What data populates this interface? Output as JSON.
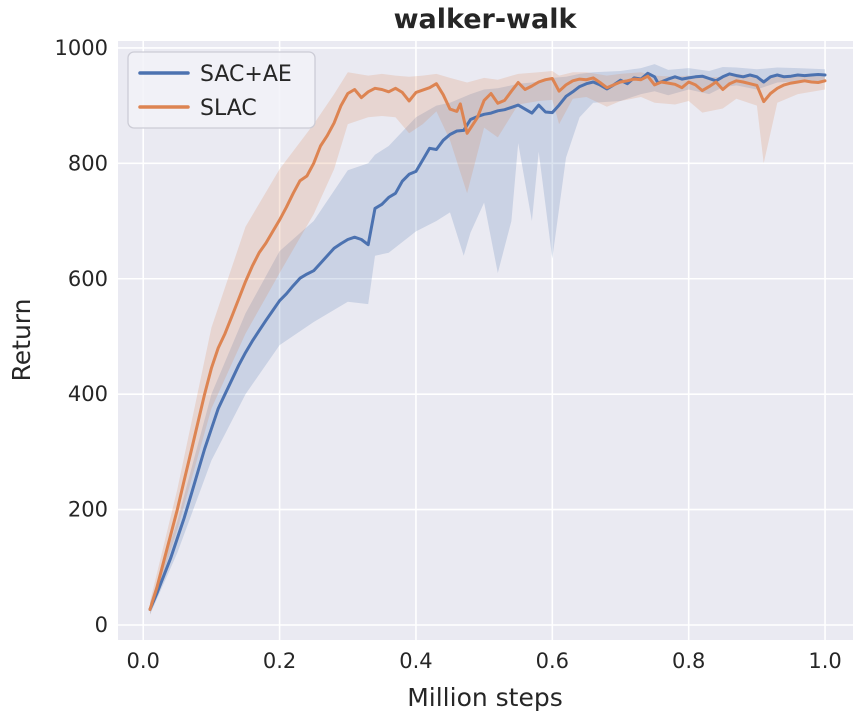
{
  "figure": {
    "title": "walker-walk",
    "xlabel": "Million steps",
    "ylabel": "Return"
  },
  "legend": {
    "items": [
      {
        "label": "SAC+AE",
        "color": "#4C72B0"
      },
      {
        "label": "SLAC",
        "color": "#DD8452"
      }
    ]
  },
  "colors": {
    "figure_bg": "#FFFFFF",
    "plot_bg": "#EAEAF2",
    "grid": "#FFFFFF",
    "text": "#262626",
    "legend_face": "#F2F2F8",
    "legend_edge": "#CCCCD6"
  },
  "chart_data": {
    "type": "line",
    "title": "walker-walk",
    "xlabel": "Million steps",
    "ylabel": "Return",
    "grid": true,
    "legend_position": "upper left",
    "xlim": [
      -0.037,
      1.041
    ],
    "ylim": [
      -26,
      1012
    ],
    "xticks": [
      0.0,
      0.2,
      0.4,
      0.6,
      0.8,
      1.0
    ],
    "xtick_labels": [
      "0.0",
      "0.2",
      "0.4",
      "0.6",
      "0.8",
      "1.0"
    ],
    "yticks": [
      0,
      200,
      400,
      600,
      800,
      1000
    ],
    "ytick_labels": [
      "0",
      "200",
      "400",
      "600",
      "800",
      "1000"
    ],
    "band_alpha": 0.2,
    "series": [
      {
        "name": "SAC+AE",
        "color": "#4C72B0",
        "x": [
          0.01,
          0.02,
          0.03,
          0.04,
          0.05,
          0.06,
          0.07,
          0.08,
          0.09,
          0.1,
          0.11,
          0.12,
          0.13,
          0.14,
          0.15,
          0.16,
          0.17,
          0.18,
          0.19,
          0.2,
          0.21,
          0.22,
          0.23,
          0.24,
          0.25,
          0.26,
          0.27,
          0.28,
          0.29,
          0.3,
          0.31,
          0.32,
          0.33,
          0.34,
          0.35,
          0.36,
          0.37,
          0.38,
          0.39,
          0.4,
          0.41,
          0.42,
          0.43,
          0.44,
          0.45,
          0.46,
          0.47,
          0.48,
          0.49,
          0.5,
          0.51,
          0.52,
          0.53,
          0.54,
          0.55,
          0.56,
          0.57,
          0.58,
          0.59,
          0.6,
          0.61,
          0.62,
          0.63,
          0.64,
          0.65,
          0.66,
          0.67,
          0.68,
          0.69,
          0.7,
          0.71,
          0.72,
          0.73,
          0.74,
          0.75,
          0.755,
          0.77,
          0.78,
          0.79,
          0.8,
          0.81,
          0.82,
          0.83,
          0.84,
          0.85,
          0.86,
          0.87,
          0.88,
          0.89,
          0.9,
          0.91,
          0.92,
          0.93,
          0.94,
          0.95,
          0.96,
          0.97,
          0.98,
          0.99,
          1.0
        ],
        "y": [
          27,
          55,
          85,
          115,
          150,
          185,
          225,
          265,
          305,
          340,
          375,
          400,
          425,
          450,
          472,
          492,
          510,
          528,
          545,
          562,
          574,
          588,
          601,
          608,
          614,
          627,
          640,
          653,
          661,
          668,
          672,
          668,
          659,
          722,
          729,
          741,
          748,
          769,
          781,
          786,
          806,
          826,
          824,
          840,
          850,
          856,
          857,
          876,
          881,
          885,
          887,
          891,
          893,
          897,
          901,
          894,
          887,
          901,
          889,
          888,
          901,
          916,
          924,
          933,
          938,
          941,
          936,
          929,
          936,
          944,
          938,
          948,
          946,
          956,
          950,
          939,
          946,
          950,
          946,
          948,
          950,
          951,
          947,
          943,
          950,
          955,
          952,
          950,
          953,
          950,
          941,
          950,
          953,
          950,
          951,
          953,
          952,
          953,
          954,
          953
        ],
        "band": [
          [
            0.01,
            18,
            38
          ],
          [
            0.05,
            125,
            180
          ],
          [
            0.1,
            285,
            400
          ],
          [
            0.15,
            400,
            540
          ],
          [
            0.2,
            485,
            648
          ],
          [
            0.25,
            525,
            700
          ],
          [
            0.3,
            560,
            788
          ],
          [
            0.33,
            556,
            800
          ],
          [
            0.34,
            640,
            815
          ],
          [
            0.36,
            645,
            830
          ],
          [
            0.4,
            682,
            880
          ],
          [
            0.43,
            700,
            900
          ],
          [
            0.45,
            715,
            905
          ],
          [
            0.47,
            640,
            915
          ],
          [
            0.48,
            680,
            920
          ],
          [
            0.5,
            732,
            928
          ],
          [
            0.52,
            610,
            930
          ],
          [
            0.54,
            700,
            935
          ],
          [
            0.55,
            835,
            938
          ],
          [
            0.57,
            700,
            940
          ],
          [
            0.58,
            820,
            942
          ],
          [
            0.6,
            635,
            948
          ],
          [
            0.62,
            810,
            950
          ],
          [
            0.64,
            880,
            955
          ],
          [
            0.66,
            905,
            958
          ],
          [
            0.7,
            908,
            960
          ],
          [
            0.73,
            920,
            965
          ],
          [
            0.75,
            925,
            972
          ],
          [
            0.77,
            918,
            962
          ],
          [
            0.8,
            928,
            965
          ],
          [
            0.83,
            920,
            960
          ],
          [
            0.85,
            932,
            967
          ],
          [
            0.87,
            935,
            966
          ],
          [
            0.9,
            928,
            963
          ],
          [
            0.93,
            940,
            966
          ],
          [
            0.96,
            942,
            965
          ],
          [
            1.0,
            942,
            963
          ]
        ]
      },
      {
        "name": "SLAC",
        "color": "#DD8452",
        "x": [
          0.01,
          0.02,
          0.03,
          0.04,
          0.05,
          0.06,
          0.07,
          0.08,
          0.09,
          0.1,
          0.11,
          0.12,
          0.13,
          0.14,
          0.15,
          0.16,
          0.17,
          0.18,
          0.19,
          0.2,
          0.21,
          0.22,
          0.23,
          0.24,
          0.25,
          0.26,
          0.27,
          0.28,
          0.29,
          0.3,
          0.31,
          0.32,
          0.33,
          0.34,
          0.35,
          0.36,
          0.37,
          0.38,
          0.39,
          0.4,
          0.41,
          0.42,
          0.43,
          0.44,
          0.45,
          0.46,
          0.465,
          0.475,
          0.49,
          0.5,
          0.51,
          0.52,
          0.53,
          0.54,
          0.55,
          0.56,
          0.57,
          0.58,
          0.59,
          0.6,
          0.61,
          0.62,
          0.63,
          0.64,
          0.65,
          0.66,
          0.67,
          0.68,
          0.69,
          0.7,
          0.71,
          0.72,
          0.73,
          0.74,
          0.75,
          0.76,
          0.77,
          0.78,
          0.79,
          0.8,
          0.81,
          0.82,
          0.83,
          0.84,
          0.85,
          0.86,
          0.87,
          0.88,
          0.89,
          0.9,
          0.91,
          0.92,
          0.93,
          0.94,
          0.95,
          0.96,
          0.97,
          0.98,
          0.99,
          1.0
        ],
        "y": [
          27,
          65,
          110,
          155,
          200,
          250,
          300,
          350,
          400,
          445,
          480,
          505,
          535,
          565,
          595,
          622,
          645,
          662,
          682,
          702,
          724,
          748,
          770,
          778,
          800,
          830,
          848,
          870,
          900,
          921,
          928,
          914,
          924,
          930,
          928,
          924,
          930,
          923,
          908,
          923,
          927,
          931,
          938,
          919,
          894,
          890,
          903,
          852,
          879,
          909,
          921,
          904,
          909,
          925,
          940,
          928,
          934,
          941,
          945,
          947,
          925,
          936,
          943,
          946,
          945,
          948,
          940,
          931,
          936,
          941,
          943,
          946,
          945,
          951,
          936,
          941,
          939,
          937,
          931,
          941,
          936,
          926,
          933,
          941,
          928,
          938,
          943,
          941,
          938,
          935,
          907,
          921,
          930,
          936,
          939,
          941,
          943,
          941,
          940,
          943
        ],
        "band": [
          [
            0.01,
            18,
            40
          ],
          [
            0.05,
            165,
            235
          ],
          [
            0.1,
            375,
            515
          ],
          [
            0.15,
            505,
            690
          ],
          [
            0.2,
            610,
            790
          ],
          [
            0.25,
            712,
            868
          ],
          [
            0.28,
            790,
            920
          ],
          [
            0.3,
            868,
            958
          ],
          [
            0.33,
            880,
            952
          ],
          [
            0.35,
            882,
            955
          ],
          [
            0.37,
            880,
            952
          ],
          [
            0.39,
            852,
            950
          ],
          [
            0.41,
            868,
            952
          ],
          [
            0.43,
            890,
            955
          ],
          [
            0.45,
            840,
            948
          ],
          [
            0.475,
            748,
            940
          ],
          [
            0.5,
            862,
            948
          ],
          [
            0.52,
            845,
            945
          ],
          [
            0.55,
            902,
            955
          ],
          [
            0.58,
            908,
            958
          ],
          [
            0.6,
            910,
            960
          ],
          [
            0.61,
            868,
            952
          ],
          [
            0.63,
            912,
            958
          ],
          [
            0.65,
            915,
            958
          ],
          [
            0.68,
            898,
            952
          ],
          [
            0.7,
            908,
            955
          ],
          [
            0.73,
            915,
            958
          ],
          [
            0.75,
            905,
            952
          ],
          [
            0.78,
            902,
            950
          ],
          [
            0.8,
            908,
            952
          ],
          [
            0.82,
            888,
            948
          ],
          [
            0.85,
            895,
            950
          ],
          [
            0.87,
            912,
            955
          ],
          [
            0.9,
            900,
            950
          ],
          [
            0.91,
            800,
            945
          ],
          [
            0.93,
            905,
            950
          ],
          [
            0.96,
            920,
            952
          ],
          [
            1.0,
            928,
            950
          ]
        ]
      }
    ]
  }
}
